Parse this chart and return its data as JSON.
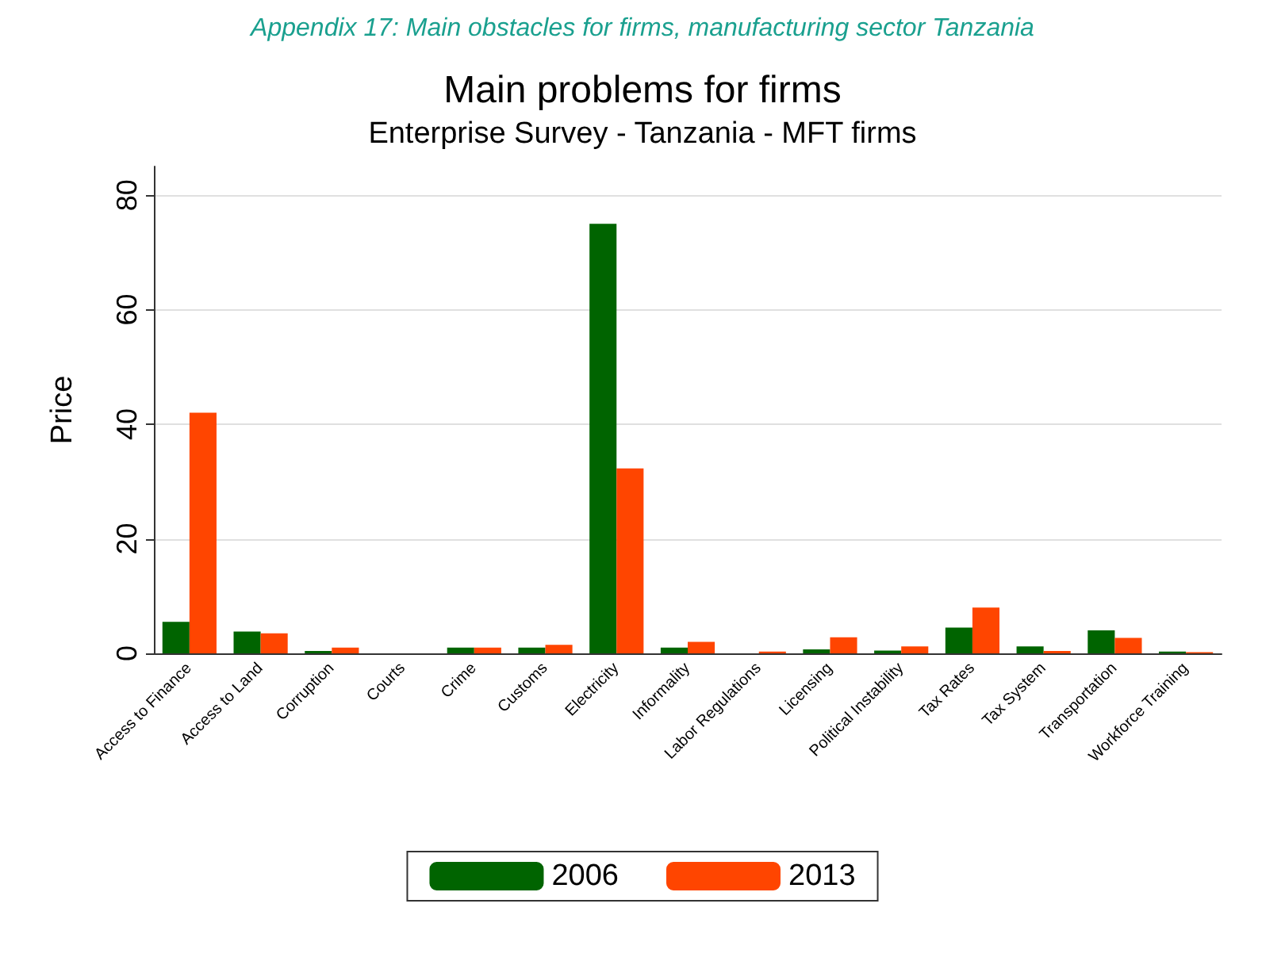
{
  "chart_data": {
    "type": "bar",
    "title": "Main problems for firms",
    "subtitle": "Enterprise Survey - Tanzania - MFT firms",
    "ylabel": "Price",
    "annotations": [
      "Appendix 17: Main obstacles for firms, manufacturing sector Tanzania"
    ],
    "categories": [
      "Access to Finance",
      "Access to Land",
      "Corruption",
      "Courts",
      "Crime",
      "Customs",
      "Electricity",
      "Informality",
      "Labor Regulations",
      "Licensing",
      "Political Instability",
      "Tax Rates",
      "Tax System",
      "Transportation",
      "Workforce Training"
    ],
    "series": [
      {
        "name": "2006",
        "color": "#006400",
        "values": [
          5.5,
          3.8,
          0.4,
          0,
          1.0,
          1.0,
          75,
          1.0,
          0,
          0.7,
          0.5,
          4.5,
          1.2,
          4.0,
          0.3
        ]
      },
      {
        "name": "2013",
        "color": "#ff4500",
        "values": [
          42,
          3.5,
          1.0,
          0,
          1.0,
          1.5,
          32.3,
          2.0,
          0.3,
          2.8,
          1.2,
          8.0,
          0.4,
          2.7,
          0.2
        ]
      }
    ],
    "ylim": [
      0,
      85
    ],
    "yticks": [
      0,
      20,
      40,
      60,
      80
    ],
    "grid": "y",
    "legend": "bottom"
  }
}
